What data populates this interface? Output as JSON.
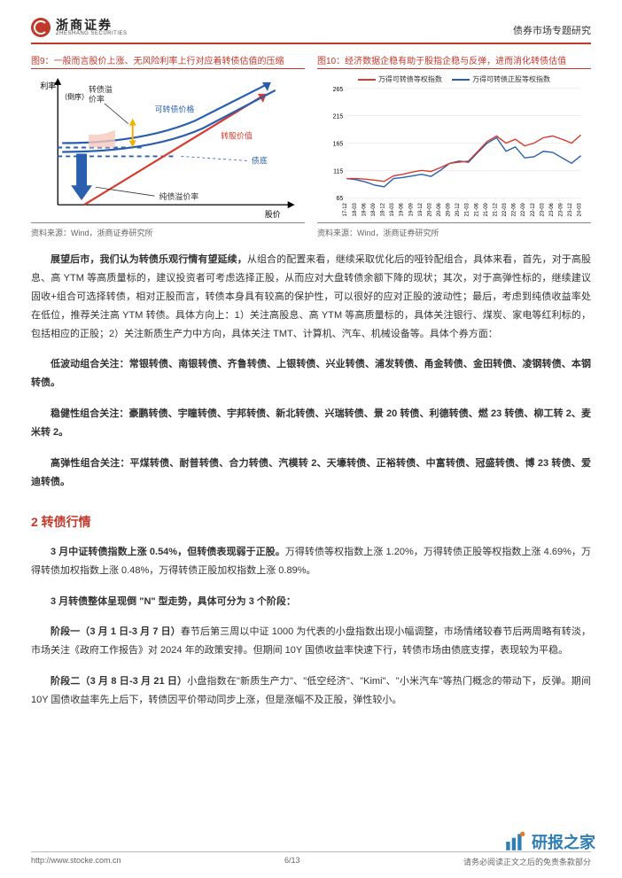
{
  "header": {
    "logo_cn": "浙商证券",
    "logo_en": "ZHESHANG SECURITIES",
    "right_text": "债券市场专题研究"
  },
  "figures": {
    "fig9": {
      "title": "图9：一般而言股价上涨、无风险利率上行对应着转债估值的压缩",
      "source": "资料来源：Wind，浙商证券研究所",
      "labels": {
        "y_label_top": "利率",
        "y_label_sub": "（倒序）",
        "premium_rate": "转债溢\n价率",
        "cb_price": "可转债价格",
        "conv_value": "转股价值",
        "bond_floor": "债底",
        "pure_premium": "纯债溢价率",
        "x_label": "股价"
      },
      "colors": {
        "axis": "#000000",
        "red": "#d93a2e",
        "blue": "#2a5fb0",
        "light_blue_dash": "#2a5fb0",
        "pink_fill": "#f5c8bd",
        "yellow_arrow": "#f2b100",
        "blue_arrow": "#2a5fb0"
      }
    },
    "fig10": {
      "title": "图10：经济数据企稳有助于股指企稳与反弹，进而消化转债估值",
      "source": "资料来源：Wind，浙商证券研究所",
      "series": [
        {
          "name": "万得可转债等权指数",
          "color": "#d93a2e"
        },
        {
          "name": "万得可转债正股等权指数",
          "color": "#2a5fb0"
        }
      ],
      "ylim": [
        65,
        265
      ],
      "ytick_step": 50,
      "x_labels": [
        "17-12",
        "18-03",
        "18-06",
        "18-09",
        "18-12",
        "19-03",
        "19-06",
        "19-09",
        "19-12",
        "20-03",
        "20-06",
        "20-09",
        "20-12",
        "21-03",
        "21-06",
        "21-09",
        "21-12",
        "22-03",
        "22-06",
        "22-09",
        "22-12",
        "23-03",
        "23-06",
        "23-09",
        "23-12",
        "24-03"
      ],
      "data_red": [
        100,
        100,
        99,
        97,
        95,
        105,
        108,
        112,
        115,
        113,
        120,
        128,
        130,
        132,
        150,
        168,
        178,
        165,
        172,
        160,
        165,
        175,
        178,
        172,
        165,
        180
      ],
      "data_blue": [
        100,
        98,
        94,
        88,
        85,
        100,
        102,
        105,
        108,
        104,
        115,
        128,
        132,
        130,
        148,
        165,
        175,
        150,
        158,
        138,
        140,
        150,
        148,
        138,
        128,
        142
      ],
      "grid_color": "#dddddd",
      "background_color": "#ffffff",
      "label_fontsize": 7
    }
  },
  "paragraphs": {
    "p1_lead": "展望后市，我们认为转债乐观行情有望延续，",
    "p1_rest": "从组合的配置来看，继续采取优化后的哑铃配组合，具体来看，首先，对于高股息、高 YTM 等高质量标的，建议投资者可考虑选择正股，从而应对大盘转债余额下降的现状；其次，对于高弹性标的，继续建议固收+组合可选择转债，相对正股而言，转债本身具有较高的保护性，可以很好的应对正股的波动性；最后，考虑到纯债收益率处在低位，推荐关注高 YTM 转债。具体方向上：1）关注高股息、高 YTM 等高质量标的，具体关注银行、煤炭、家电等红利标的，包括相应的正股；2）关注新质生产力中方向，具体关注 TMT、计算机、汽车、机械设备等。具体个券方面：",
    "p2": "低波动组合关注：常银转债、南银转债、齐鲁转债、上银转债、兴业转债、浦发转债、甬金转债、金田转债、凌钢转债、本钢转债。",
    "p3": "稳健性组合关注：豪鹏转债、宇瞳转债、宇邦转债、新北转债、兴瑞转债、景 20 转债、利德转债、燃 23 转债、柳工转 2、麦米转 2。",
    "p4": "高弹性组合关注：平煤转债、耐普转债、合力转债、汽模转 2、天壕转债、正裕转债、中富转债、冠盛转债、博 23 转债、爱迪转债。"
  },
  "section": {
    "title": "2 转债行情",
    "s1_lead": "3 月中证转债指数上涨 0.54%，但转债表现弱于正股。",
    "s1_rest": "万得转债等权指数上涨 1.20%，万得转债正股等权指数上涨 4.69%，万得转债加权指数上涨 0.48%，万得转债正股加权指数上涨 0.89%。",
    "s2": "3 月转债整体呈现倒 \"N\" 型走势，具体可分为 3 个阶段：",
    "s3_lead": "阶段一（3 月 1 日-3 月 7 日）",
    "s3_rest": "春节后第三周以中证 1000 为代表的小盘指数出现小幅调整，市场情绪较春节后两周略有转淡，市场关注《政府工作报告》对 2024 年的政策安排。但期间 10Y 国债收益率快速下行，转债市场由债底支撑，表现较为平稳。",
    "s4_lead": "阶段二（3 月 8 日-3 月 21 日）",
    "s4_rest": "小盘指数在\"新质生产力\"、\"低空经济\"、\"Kimi\"、\"小米汽车\"等热门概念的带动下，反弹。期间 10Y 国债收益率先上后下，转债因平价带动同步上涨，但是涨幅不及正股，弹性较小。"
  },
  "footer": {
    "url": "http://www.stocke.com.cn",
    "page": "6/13",
    "disclaimer": "请务必阅读正文之后的免责条款部分"
  },
  "watermark": {
    "text": "研报之家"
  }
}
